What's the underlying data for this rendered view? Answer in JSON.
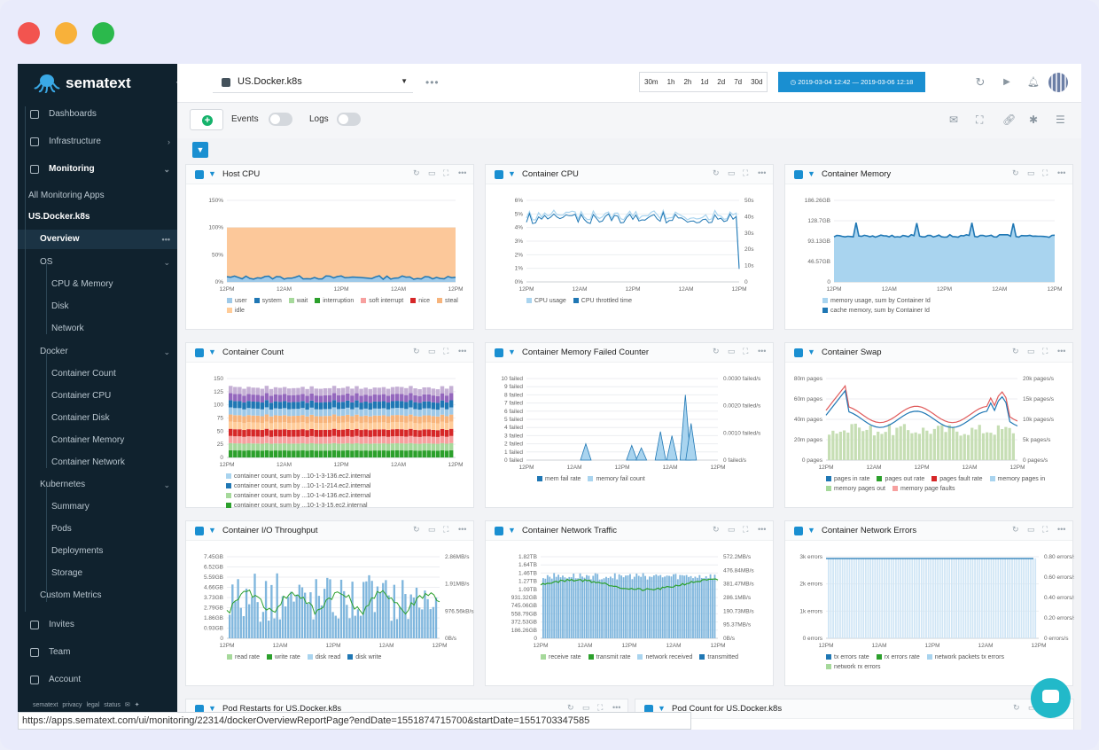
{
  "window": {
    "traffic_lights": [
      "#f2544f",
      "#f8b13a",
      "#2bb94c"
    ]
  },
  "sidebar": {
    "brand": "sematext",
    "items": [
      {
        "label": "Dashboards",
        "icon": "dashboard-icon",
        "chevron": ""
      },
      {
        "label": "Infrastructure",
        "icon": "server-icon",
        "chevron": "›"
      },
      {
        "label": "Monitoring",
        "icon": "monitoring-icon",
        "chevron": "⌄"
      },
      {
        "label": "All Monitoring Apps"
      },
      {
        "label": "US.Docker.k8s"
      },
      {
        "label": "Overview",
        "more": "•••"
      },
      {
        "label": "OS",
        "chevron": "⌄"
      },
      {
        "label": "CPU & Memory"
      },
      {
        "label": "Disk"
      },
      {
        "label": "Network"
      },
      {
        "label": "Docker",
        "chevron": "⌄"
      },
      {
        "label": "Container Count"
      },
      {
        "label": "Container CPU"
      },
      {
        "label": "Container Disk"
      },
      {
        "label": "Container Memory"
      },
      {
        "label": "Container Network"
      },
      {
        "label": "Kubernetes",
        "chevron": "⌄"
      },
      {
        "label": "Summary"
      },
      {
        "label": "Pods"
      },
      {
        "label": "Deployments"
      },
      {
        "label": "Storage"
      },
      {
        "label": "Custom Metrics"
      },
      {
        "label": "Invites",
        "icon": "send-icon"
      },
      {
        "label": "Team",
        "icon": "team-icon"
      },
      {
        "label": "Account",
        "icon": "user-icon"
      }
    ],
    "footer": "sematext privacy legal status"
  },
  "topbar": {
    "app_name": "US.Docker.k8s",
    "more": "•••",
    "time_buttons": [
      "30m",
      "1h",
      "2h",
      "1d",
      "2d",
      "7d",
      "30d"
    ],
    "time_range": "◷ 2019-03-04 12:42 — 2019-03-06 12:18"
  },
  "subbar": {
    "add": "+",
    "events_label": "Events",
    "logs_label": "Logs"
  },
  "x_ticks": [
    "12PM",
    "12AM",
    "12PM",
    "12AM",
    "12PM"
  ],
  "panels": [
    {
      "title": "Host CPU",
      "y_ticks": [
        "150%",
        "100%",
        "50%",
        "0%"
      ],
      "legend": [
        {
          "label": "user",
          "color": "#9ec9e8"
        },
        {
          "label": "system",
          "color": "#1f77b4"
        },
        {
          "label": "wait",
          "color": "#a6d99b"
        },
        {
          "label": "interruption",
          "color": "#2ca02c"
        },
        {
          "label": "soft interrupt",
          "color": "#f7a09f"
        },
        {
          "label": "nice",
          "color": "#d62728"
        },
        {
          "label": "steal",
          "color": "#f7b47c"
        },
        {
          "label": "idle",
          "color": "#ffcc99"
        }
      ]
    },
    {
      "title": "Container CPU",
      "y_ticks": [
        "6%",
        "5%",
        "4%",
        "3%",
        "2%",
        "1%",
        "0%"
      ],
      "y2_ticks": [
        "50s",
        "40s",
        "30s",
        "20s",
        "10s",
        "0"
      ],
      "legend": [
        {
          "label": "CPU usage",
          "color": "#a9d4ef"
        },
        {
          "label": "CPU throttled time",
          "color": "#1f77b4"
        }
      ]
    },
    {
      "title": "Container Memory",
      "y_ticks": [
        "186.26GB",
        "128.7GB",
        "93.13GB",
        "46.57GB",
        "0"
      ],
      "legend": [
        {
          "label": "memory usage, sum by Container Id",
          "color": "#a9d4ef"
        },
        {
          "label": "cache memory, sum by Container Id",
          "color": "#1f77b4"
        }
      ]
    },
    {
      "title": "Container Count",
      "y_ticks": [
        "150",
        "125",
        "100",
        "75",
        "50",
        "25",
        "0"
      ],
      "legend": [
        {
          "label": "container count, sum by ...10-1-3-136.ec2.internal",
          "color": "#a9d4ef"
        },
        {
          "label": "container count, sum by ...10-1-1-214.ec2.internal",
          "color": "#1f77b4"
        },
        {
          "label": "container count, sum by ...10-1-4-136.ec2.internal",
          "color": "#a6d99b"
        },
        {
          "label": "container count, sum by ...10-1-3-15.ec2.internal",
          "color": "#2ca02c"
        }
      ]
    },
    {
      "title": "Container Memory Failed Counter",
      "y_ticks": [
        "10 failed",
        "9 failed",
        "8 failed",
        "7 failed",
        "6 failed",
        "5 failed",
        "4 failed",
        "3 failed",
        "2 failed",
        "1 failed",
        "0 failed"
      ],
      "y2_ticks": [
        "0.0030 failed/s",
        "0.0020 failed/s",
        "0.0010 failed/s",
        "0 failed/s"
      ],
      "legend": [
        {
          "label": "mem fail rate",
          "color": "#1f77b4"
        },
        {
          "label": "memory fail count",
          "color": "#a9d4ef"
        }
      ]
    },
    {
      "title": "Container Swap",
      "y_ticks": [
        "80m pages",
        "60m pages",
        "40m pages",
        "20m pages",
        "0 pages"
      ],
      "y2_ticks": [
        "20k pages/s",
        "15k pages/s",
        "10k pages/s",
        "5k pages/s",
        "0 pages/s"
      ],
      "legend": [
        {
          "label": "pages in rate",
          "color": "#1f77b4"
        },
        {
          "label": "pages out rate",
          "color": "#2ca02c"
        },
        {
          "label": "pages fault rate",
          "color": "#d62728"
        },
        {
          "label": "memory pages in",
          "color": "#a9d4ef"
        },
        {
          "label": "memory pages out",
          "color": "#a6d99b"
        },
        {
          "label": "memory page faults",
          "color": "#f7a09f"
        }
      ]
    },
    {
      "title": "Container I/O Throughput",
      "y_ticks": [
        "7.45GB",
        "6.52GB",
        "5.59GB",
        "4.66GB",
        "3.73GB",
        "2.79GB",
        "1.86GB",
        "0.93GB",
        "0"
      ],
      "y2_ticks": [
        "2.86MB/s",
        "1.91MB/s",
        "976.56kB/s",
        "0B/s"
      ],
      "legend": [
        {
          "label": "read rate",
          "color": "#a6d99b"
        },
        {
          "label": "write rate",
          "color": "#2ca02c"
        },
        {
          "label": "disk read",
          "color": "#a9d4ef"
        },
        {
          "label": "disk write",
          "color": "#1f77b4"
        }
      ]
    },
    {
      "title": "Container Network Traffic",
      "y_ticks": [
        "1.82TB",
        "1.64TB",
        "1.46TB",
        "1.27TB",
        "1.09TB",
        "931.32GB",
        "745.06GB",
        "558.79GB",
        "372.53GB",
        "186.26GB",
        "0"
      ],
      "y2_ticks": [
        "572.2MB/s",
        "476.84MB/s",
        "381.47MB/s",
        "286.1MB/s",
        "190.73MB/s",
        "95.37MB/s",
        "0B/s"
      ],
      "legend": [
        {
          "label": "receive rate",
          "color": "#a6d99b"
        },
        {
          "label": "transmit rate",
          "color": "#2ca02c"
        },
        {
          "label": "network received",
          "color": "#a9d4ef"
        },
        {
          "label": "transmitted",
          "color": "#1f77b4"
        }
      ]
    },
    {
      "title": "Container Network Errors",
      "y_ticks": [
        "3k errors",
        "2k errors",
        "1k errors",
        "0 errors"
      ],
      "y2_ticks": [
        "0.80 errors/s",
        "0.60 errors/s",
        "0.40 errors/s",
        "0.20 errors/s",
        "0 errors/s"
      ],
      "legend": [
        {
          "label": "tx errors rate",
          "color": "#1f77b4"
        },
        {
          "label": "rx errors rate",
          "color": "#2ca02c"
        },
        {
          "label": "network packets tx errors",
          "color": "#a9d4ef"
        },
        {
          "label": "network rx errors",
          "color": "#a6d99b"
        }
      ]
    },
    {
      "title": "Pod Restarts for US.Docker.k8s"
    },
    {
      "title": "Pod Count for US.Docker.k8s"
    }
  ],
  "statusbar": {
    "url": "https://apps.sematext.com/ui/monitoring/22314/dockerOverviewReportPage?endDate=1551874715700&startDate=1551703347585"
  }
}
